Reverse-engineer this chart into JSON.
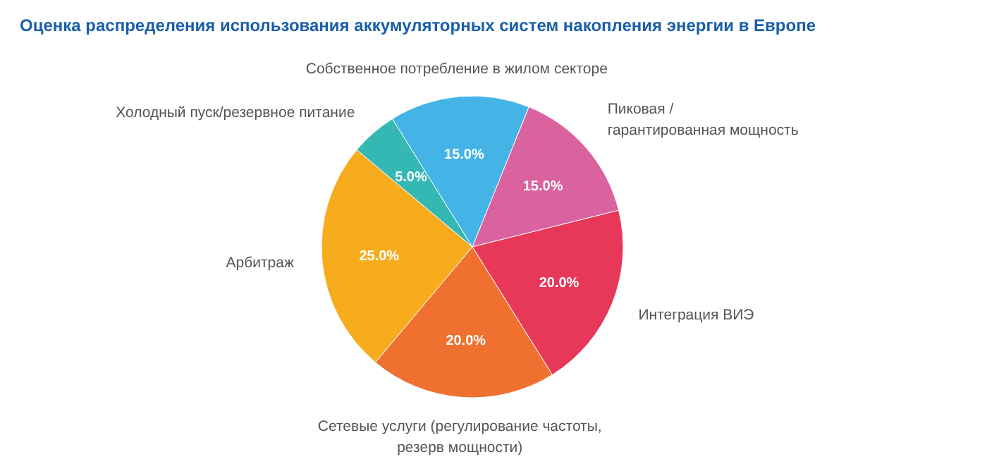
{
  "chart_data": {
    "type": "pie",
    "title": "Оценка распределения использования аккумуляторных систем накопления энергии в Европе",
    "categories": [
      "Пиковая /\nгарантированная мощность",
      "Интеграция ВИЭ",
      "Сетевые услуги (регулирование частоты,\nрезерв мощности)",
      "Арбитраж",
      "Холодный пуск/резервное питание",
      "Собственное потребление в жилом секторе"
    ],
    "values": [
      15,
      20,
      20,
      25,
      5,
      15
    ],
    "colors": [
      "#d9629f",
      "#e8385a",
      "#f07030",
      "#f7ac1e",
      "#35b8b4",
      "#44b4e6"
    ],
    "value_labels": [
      "15.0%",
      "20.0%",
      "20.0%",
      "25.0%",
      "5.0%",
      "15.0%"
    ]
  }
}
